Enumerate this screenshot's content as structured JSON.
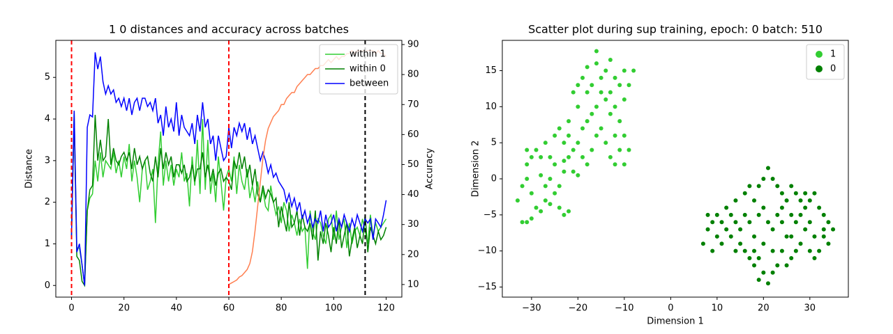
{
  "chart_data": [
    {
      "type": "line",
      "title": "1 0 distances and accuracy across batches",
      "ylabel": "Distance",
      "y2label": "Accuracy",
      "x": [
        0,
        1,
        2,
        3,
        4,
        5,
        6,
        7,
        8,
        9,
        10,
        11,
        12,
        13,
        14,
        15,
        16,
        17,
        18,
        19,
        20,
        21,
        22,
        23,
        24,
        25,
        26,
        27,
        28,
        29,
        30,
        31,
        32,
        33,
        34,
        35,
        36,
        37,
        38,
        39,
        40,
        41,
        42,
        43,
        44,
        45,
        46,
        47,
        48,
        49,
        50,
        51,
        52,
        53,
        54,
        55,
        56,
        57,
        58,
        59,
        60,
        61,
        62,
        63,
        64,
        65,
        66,
        67,
        68,
        69,
        70,
        71,
        72,
        73,
        74,
        75,
        76,
        77,
        78,
        79,
        80,
        81,
        82,
        83,
        84,
        85,
        86,
        87,
        88,
        89,
        90,
        91,
        92,
        93,
        94,
        95,
        96,
        97,
        98,
        99,
        100,
        101,
        102,
        103,
        104,
        105,
        106,
        107,
        108,
        109,
        110,
        111,
        112,
        113,
        114,
        115,
        116,
        117,
        118,
        119,
        120
      ],
      "series": [
        {
          "name": "within 1",
          "color": "#32cd32",
          "values": [
            1.2,
            4.2,
            0.9,
            0.9,
            0.5,
            0,
            1.8,
            2.1,
            2.2,
            3.0,
            2.5,
            3.2,
            2.6,
            3.0,
            2.9,
            2.8,
            3.2,
            2.7,
            3.0,
            2.6,
            3.1,
            2.8,
            3.4,
            2.5,
            3.0,
            2.6,
            2.0,
            2.8,
            3.0,
            2.3,
            2.5,
            2.8,
            1.5,
            2.9,
            3.7,
            2.4,
            3.0,
            2.5,
            2.9,
            2.4,
            2.8,
            2.6,
            3.2,
            2.5,
            2.7,
            1.9,
            3.1,
            2.4,
            3.5,
            2.2,
            4.0,
            2.3,
            3.5,
            2.2,
            2.7,
            2.0,
            3.1,
            2.5,
            1.8,
            2.6,
            2.8,
            2.5,
            3.1,
            2.2,
            2.9,
            2.5,
            2.3,
            2.8,
            2.1,
            2.4,
            2.0,
            2.5,
            2.0,
            2.3,
            1.9,
            1.8,
            2.4,
            2.0,
            1.7,
            1.9,
            1.5,
            2.0,
            1.8,
            1.3,
            1.7,
            1.5,
            1.2,
            1.6,
            1.3,
            1.4,
            0.4,
            1.8,
            1.3,
            1.1,
            1.6,
            1.5,
            1.2,
            1.0,
            1.6,
            1.7,
            1.1,
            1.8,
            1.1,
            1.4,
            1.6,
            0.9,
            1.5,
            1.0,
            1.3,
            1.4,
            1.2,
            1.6,
            1.3,
            1.0,
            1.7,
            1.2,
            1.5,
            1.3,
            1.4,
            1.5,
            1.6
          ]
        },
        {
          "name": "within 0",
          "color": "#008000",
          "values": [
            1.2,
            4.0,
            0.7,
            0.6,
            0.1,
            0,
            1.8,
            2.3,
            2.4,
            4.1,
            3.0,
            3.5,
            3.0,
            3.1,
            4.0,
            2.9,
            3.3,
            3.0,
            2.9,
            3.1,
            3.2,
            3.0,
            3.2,
            2.8,
            3.3,
            2.9,
            3.1,
            2.8,
            3.0,
            3.1,
            2.7,
            2.5,
            3.1,
            2.6,
            3.3,
            2.8,
            3.2,
            2.9,
            3.1,
            2.6,
            2.9,
            2.9,
            2.7,
            2.9,
            2.5,
            2.6,
            2.9,
            2.5,
            2.8,
            2.8,
            3.2,
            2.6,
            2.9,
            2.5,
            2.8,
            2.4,
            2.7,
            2.8,
            2.5,
            2.6,
            2.5,
            2.3,
            3.0,
            2.8,
            3.2,
            2.8,
            3.1,
            2.6,
            2.9,
            2.4,
            2.8,
            2.2,
            2.0,
            2.4,
            2.1,
            2.3,
            2.2,
            2.0,
            2.1,
            1.4,
            1.9,
            1.6,
            1.3,
            2.0,
            1.4,
            1.5,
            1.8,
            1.2,
            1.7,
            1.4,
            1.3,
            1.5,
            1.1,
            1.8,
            0.6,
            1.3,
            1.0,
            1.5,
            1.2,
            0.8,
            1.4,
            1.0,
            1.6,
            0.9,
            1.2,
            1.5,
            0.7,
            1.1,
            1.4,
            0.9,
            1.2,
            1.0,
            1.7,
            0.8,
            1.4,
            1.2,
            1.0,
            1.3,
            1.1,
            1.2,
            1.4
          ]
        },
        {
          "name": "between",
          "color": "#0000ff",
          "values": [
            1.2,
            4.2,
            0.8,
            1.0,
            0.5,
            0,
            3.8,
            4.1,
            4.05,
            5.6,
            5.2,
            5.5,
            4.9,
            4.6,
            4.8,
            4.6,
            4.7,
            4.4,
            4.5,
            4.3,
            4.5,
            4.2,
            4.5,
            4.1,
            4.4,
            4.5,
            4.2,
            4.5,
            4.5,
            4.3,
            4.4,
            4.2,
            4.5,
            3.9,
            4.1,
            3.6,
            4.3,
            3.8,
            4.0,
            3.7,
            4.4,
            3.6,
            4.1,
            3.8,
            3.7,
            3.6,
            3.9,
            3.4,
            4.1,
            3.7,
            4.4,
            3.8,
            4.0,
            3.4,
            3.6,
            3.0,
            3.6,
            3.3,
            3.0,
            3.1,
            3.8,
            3.3,
            3.8,
            3.6,
            3.9,
            3.7,
            3.9,
            3.5,
            3.8,
            3.4,
            3.6,
            3.3,
            3.0,
            3.2,
            3.0,
            2.7,
            2.9,
            2.6,
            2.7,
            2.5,
            2.4,
            2.3,
            2.0,
            2.2,
            1.9,
            2.1,
            1.8,
            2.0,
            1.6,
            1.8,
            1.5,
            1.7,
            1.4,
            1.6,
            1.5,
            1.8,
            1.3,
            1.7,
            1.4,
            1.5,
            1.7,
            1.3,
            1.6,
            1.4,
            1.7,
            1.5,
            1.3,
            1.6,
            1.4,
            1.7,
            1.5,
            1.3,
            1.6,
            1.5,
            1.6,
            1.1,
            1.6,
            1.5,
            1.4,
            1.7,
            2.05
          ]
        },
        {
          "color": "#ff7f50",
          "axis": "y2",
          "values": [
            null,
            null,
            null,
            null,
            null,
            null,
            null,
            null,
            null,
            null,
            null,
            null,
            null,
            null,
            null,
            null,
            null,
            null,
            null,
            null,
            null,
            null,
            null,
            null,
            null,
            null,
            null,
            null,
            null,
            null,
            null,
            null,
            null,
            null,
            null,
            null,
            null,
            null,
            null,
            null,
            null,
            null,
            null,
            null,
            null,
            null,
            null,
            null,
            null,
            null,
            null,
            null,
            null,
            null,
            null,
            null,
            null,
            null,
            null,
            null,
            10,
            10.5,
            11,
            11.5,
            12.5,
            13,
            14,
            15,
            17,
            21,
            28,
            36,
            44,
            52,
            58,
            62,
            64,
            66,
            67,
            68,
            70,
            70,
            72,
            73,
            74,
            74,
            76,
            77,
            78,
            79,
            80,
            80,
            81,
            82,
            82,
            83,
            83,
            84,
            85,
            84,
            85,
            86,
            85,
            86,
            86,
            87,
            87,
            88,
            87,
            88,
            88,
            88,
            88,
            88,
            88,
            88,
            87,
            88,
            87,
            87,
            86
          ]
        }
      ],
      "vlines": [
        {
          "x": 0,
          "color": "#ff0000"
        },
        {
          "x": 60,
          "color": "#ff0000"
        },
        {
          "x": 112,
          "color": "#000000"
        }
      ],
      "xlim": [
        -6,
        126
      ],
      "xticks": [
        0,
        20,
        40,
        60,
        80,
        100,
        120
      ],
      "ylim": [
        -0.28,
        5.89
      ],
      "yticks": [
        0,
        1,
        2,
        3,
        4,
        5
      ],
      "y2lim": [
        5.8,
        91.4
      ],
      "y2ticks": [
        10,
        20,
        30,
        40,
        50,
        60,
        70,
        80,
        90
      ],
      "legend": "upper right"
    },
    {
      "type": "scatter",
      "title": "Scatter plot during sup training, epoch: 0 batch: 510",
      "xlabel": "Dimension 1",
      "ylabel": "Dimension 2",
      "series": [
        {
          "name": "1",
          "color": "#32cd32",
          "x": [
            -33,
            -32,
            -31,
            -30,
            -32,
            -31,
            -31,
            -30,
            -31,
            -29,
            -28,
            -30,
            -29,
            -28,
            -27,
            -26,
            -27,
            -26,
            -28,
            -25,
            -24,
            -23,
            -22,
            -24,
            -23,
            -25,
            -26,
            -27,
            -25,
            -24,
            -23,
            -22,
            -21,
            -20,
            -21,
            -22,
            -20,
            -19,
            -18,
            -17,
            -19,
            -20,
            -21,
            -22,
            -18,
            -17,
            -16,
            -15,
            -14,
            -13,
            -12,
            -11,
            -10,
            -12,
            -11,
            -13,
            -14,
            -15,
            -16,
            -18,
            -19,
            -18,
            -16,
            -16,
            -15,
            -14,
            -13,
            -12,
            -11,
            -10,
            -9,
            -8,
            -10,
            -12,
            -13,
            -17,
            -20,
            -9,
            -10,
            -23
          ],
          "y": [
            -3,
            -6,
            -6,
            -5.5,
            -1,
            0,
            2,
            3,
            4,
            4,
            3,
            -2,
            -4,
            -4.5,
            -3,
            -3.5,
            -1,
            0,
            0.5,
            -2,
            -4,
            -5,
            -4.5,
            -1,
            1,
            2,
            3,
            5,
            6,
            7,
            5,
            3,
            1,
            0.5,
            4,
            6,
            5,
            3,
            2,
            4,
            7,
            10,
            12,
            8,
            8,
            9,
            6,
            7,
            5,
            3,
            2,
            4,
            2,
            6,
            8,
            9,
            11,
            12,
            10,
            12,
            14,
            15.5,
            16,
            17.7,
            14,
            15,
            16.5,
            14,
            13,
            15,
            13,
            15,
            11,
            10,
            12,
            13,
            13,
            4,
            6,
            2.5
          ]
        },
        {
          "name": "0",
          "color": "#008000",
          "x": [
            7,
            8,
            8,
            9,
            10,
            11,
            12,
            12,
            13,
            14,
            14,
            15,
            14,
            13,
            16,
            17,
            18,
            19,
            20,
            21,
            22,
            23,
            24,
            25,
            26,
            27,
            28,
            29,
            30,
            31,
            32,
            33,
            34,
            35,
            34,
            33,
            32,
            31,
            30,
            29,
            28,
            27,
            26,
            25,
            24,
            23,
            22,
            21,
            20,
            19,
            18,
            17,
            16,
            15,
            16,
            17,
            18,
            19,
            20,
            21,
            22,
            23,
            24,
            25,
            26,
            27,
            28,
            29,
            30,
            31,
            33,
            20,
            22,
            18,
            24,
            26,
            11,
            9,
            10,
            19
          ],
          "y": [
            -9,
            -7,
            -5,
            -6,
            -8,
            -6,
            -4,
            -7,
            -5,
            -3,
            -6,
            -9,
            -10,
            -8,
            -2,
            -1,
            -3,
            -1,
            0,
            1.5,
            0,
            -1,
            -2,
            -3,
            -1,
            -2,
            -3,
            -2,
            -3,
            -2,
            -4,
            -5,
            -6,
            -7,
            -9,
            -8,
            -10,
            -8,
            -6,
            -7,
            -9,
            -10,
            -11,
            -12,
            -10,
            -12,
            -13,
            -14.5,
            -13,
            -14,
            -12,
            -11,
            -10,
            -7,
            -5,
            -6,
            -8,
            -5,
            -4,
            -6,
            -7,
            -5,
            -6,
            -8,
            -5,
            -6,
            -5,
            -4,
            -10,
            -11,
            -7,
            -9,
            -10,
            -10,
            -4,
            -8,
            -9,
            -10,
            -5,
            -11
          ]
        }
      ],
      "xlim": [
        -36.3,
        38.3
      ],
      "xticks": [
        {
          "value": -30,
          "label": "−30"
        },
        {
          "value": -20,
          "label": "−20"
        },
        {
          "value": -10,
          "label": "−10"
        },
        0,
        10,
        20,
        30
      ],
      "ylim": [
        -16.4,
        19.2
      ],
      "yticks": [
        {
          "value": -15,
          "label": "−15"
        },
        {
          "value": -10,
          "label": "−10"
        },
        {
          "value": -5,
          "label": "−5"
        },
        0,
        5,
        10,
        15
      ],
      "legend": "upper right"
    }
  ]
}
